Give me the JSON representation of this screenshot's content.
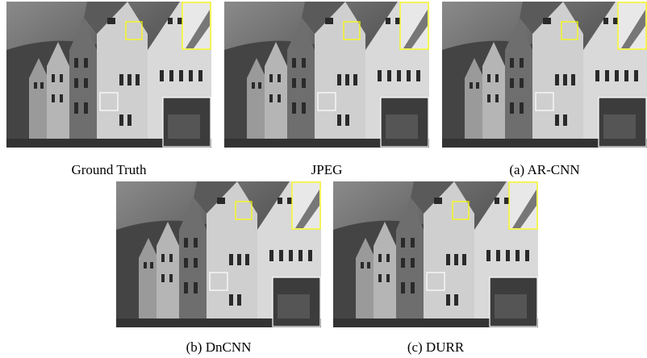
{
  "figure": {
    "panels": [
      {
        "caption": "Ground Truth"
      },
      {
        "caption": "JPEG"
      },
      {
        "caption": "(a) AR-CNN"
      },
      {
        "caption": "(b) DnCNN"
      },
      {
        "caption": "(c) DURR"
      }
    ]
  }
}
